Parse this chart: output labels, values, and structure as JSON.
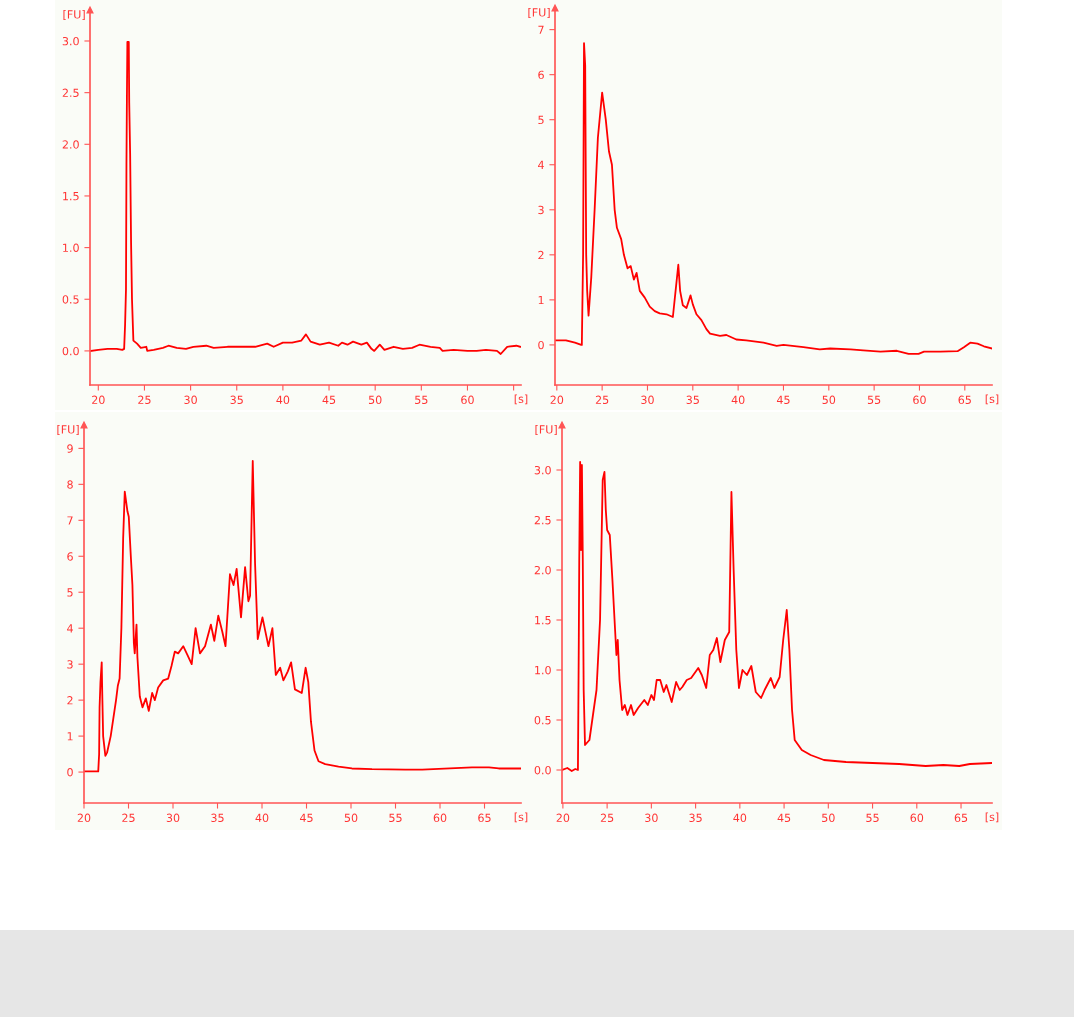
{
  "chart_data": [
    {
      "type": "line",
      "xlabel": "[s]",
      "ylabel": "[FU]",
      "xlim": [
        19.1,
        65.8
      ],
      "ylim": [
        -0.33,
        3.3
      ],
      "xticks": [
        20,
        25,
        30,
        35,
        40,
        45,
        50,
        55,
        60,
        {
          "value": 65,
          "label": null
        }
      ],
      "yticks": [
        {
          "value": 0,
          "label": "0.0"
        },
        0.5,
        {
          "value": 1,
          "label": "1.0"
        },
        1.5,
        {
          "value": 2,
          "label": "2.0"
        },
        2.5,
        {
          "value": 3,
          "label": "3.0"
        }
      ],
      "series": [
        {
          "color": "#ff0000",
          "x": [
            19.2,
            20,
            21,
            22,
            22.6,
            22.8,
            22.9,
            23.0,
            23.05,
            23.1,
            23.15,
            23.3,
            23.35,
            23.45,
            23.55,
            23.65,
            23.8,
            24.2,
            24.6,
            25.2,
            25.3,
            26,
            27,
            27.6,
            28.5,
            29.5,
            30.3,
            31.7,
            32.5,
            34,
            35.5,
            37,
            38.3,
            39,
            40,
            41,
            42,
            42.5,
            43,
            44,
            45,
            46,
            46.4,
            47,
            47.6,
            48.5,
            49.1,
            49.6,
            49.9,
            50.5,
            51,
            52,
            53,
            54,
            54.8,
            56,
            57,
            57.3,
            58.5,
            60,
            61,
            62,
            63.2,
            63.6,
            64.3,
            65.3,
            65.7
          ],
          "values": [
            0.0,
            0.01,
            0.02,
            0.02,
            0.01,
            0.02,
            0.25,
            0.6,
            1.8,
            2.45,
            2.99,
            2.99,
            2.4,
            1.9,
            1.05,
            0.5,
            0.1,
            0.07,
            0.03,
            0.04,
            0.0,
            0.01,
            0.03,
            0.05,
            0.03,
            0.02,
            0.04,
            0.05,
            0.03,
            0.04,
            0.04,
            0.04,
            0.07,
            0.04,
            0.08,
            0.08,
            0.1,
            0.16,
            0.09,
            0.06,
            0.08,
            0.05,
            0.08,
            0.06,
            0.09,
            0.06,
            0.08,
            0.02,
            0.0,
            0.06,
            0.01,
            0.04,
            0.02,
            0.03,
            0.06,
            0.04,
            0.03,
            0.0,
            0.01,
            0.0,
            0.0,
            0.01,
            0.0,
            -0.03,
            0.04,
            0.05,
            0.04
          ]
        }
      ]
    },
    {
      "type": "line",
      "xlabel": "[s]",
      "ylabel": "[FU]",
      "xlim": [
        19.8,
        68.0
      ],
      "ylim": [
        -0.89,
        7.48
      ],
      "xticks": [
        20,
        25,
        30,
        35,
        40,
        45,
        50,
        55,
        60,
        65
      ],
      "yticks": [
        0,
        1,
        2,
        3,
        4,
        5,
        6,
        7
      ],
      "series": [
        {
          "color": "#ff0000",
          "x": [
            19.8,
            21,
            22,
            22.7,
            22.76,
            22.9,
            23.0,
            23.13,
            23.24,
            23.35,
            23.5,
            23.8,
            24.17,
            24.53,
            25.0,
            25.4,
            25.75,
            26.08,
            26.38,
            26.63,
            27.1,
            27.4,
            27.8,
            28.15,
            28.5,
            28.8,
            29.15,
            29.7,
            30.25,
            30.8,
            31.35,
            32.1,
            32.8,
            33.1,
            33.4,
            33.6,
            33.9,
            34.3,
            34.75,
            35.0,
            35.4,
            35.95,
            36.5,
            36.9,
            38,
            38.7,
            39.8,
            40.9,
            42.8,
            44.25,
            45,
            47.2,
            49,
            50.15,
            52.4,
            53.8,
            55.7,
            57.5,
            58.8,
            59.9,
            60.5,
            62.3,
            64.2,
            64.9,
            65.6,
            66.4,
            67.1,
            68.0
          ],
          "values": [
            0.1,
            0.1,
            0.05,
            0.0,
            0.0,
            2.0,
            6.7,
            6.2,
            2.0,
            1.2,
            0.65,
            1.5,
            3.0,
            4.6,
            5.6,
            5.0,
            4.3,
            4.0,
            3.0,
            2.6,
            2.35,
            2.0,
            1.7,
            1.75,
            1.45,
            1.6,
            1.2,
            1.05,
            0.85,
            0.75,
            0.7,
            0.68,
            0.62,
            1.2,
            1.78,
            1.2,
            0.88,
            0.82,
            1.1,
            0.9,
            0.68,
            0.55,
            0.35,
            0.25,
            0.2,
            0.22,
            0.12,
            0.1,
            0.05,
            -0.02,
            0.0,
            -0.05,
            -0.1,
            -0.08,
            -0.1,
            -0.12,
            -0.15,
            -0.13,
            -0.2,
            -0.2,
            -0.15,
            -0.15,
            -0.14,
            -0.05,
            0.05,
            0.03,
            -0.03,
            -0.08
          ]
        }
      ]
    },
    {
      "type": "line",
      "xlabel": "[s]",
      "ylabel": "[FU]",
      "xlim": [
        20,
        69.1
      ],
      "ylim": [
        -0.86,
        9.65
      ],
      "xticks": [
        20,
        25,
        30,
        35,
        40,
        45,
        50,
        55,
        60,
        65
      ],
      "yticks": [
        0,
        1,
        2,
        3,
        4,
        5,
        6,
        7,
        8,
        9
      ],
      "series": [
        {
          "color": "#ff0000",
          "x": [
            20,
            21.6,
            21.7,
            21.75,
            21.85,
            21.99,
            22.05,
            22.15,
            22.4,
            22.6,
            23,
            23.3,
            23.6,
            23.8,
            24.0,
            24.2,
            24.4,
            24.58,
            24.88,
            25.03,
            25.26,
            25.44,
            25.6,
            25.7,
            25.9,
            26.0,
            26.27,
            26.57,
            26.95,
            27.28,
            27.66,
            27.96,
            28.33,
            28.9,
            29.46,
            29.83,
            30.2,
            30.58,
            31.15,
            31.63,
            32.1,
            32.54,
            33.03,
            33.6,
            34.26,
            34.64,
            35.09,
            35.54,
            35.9,
            36.4,
            36.8,
            37.15,
            37.64,
            38.1,
            38.47,
            38.66,
            38.96,
            39.22,
            39.52,
            40.05,
            40.72,
            41.17,
            41.55,
            42.04,
            42.4,
            42.9,
            43.27,
            43.7,
            44.47,
            44.9,
            45.2,
            45.5,
            45.9,
            46.35,
            47.1,
            48.6,
            50.1,
            52.36,
            56.1,
            58.0,
            59.86,
            63.6,
            65.5,
            66.6,
            69.1
          ],
          "values": [
            0.02,
            0.02,
            0.5,
            1.8,
            2.5,
            3.05,
            2.2,
            1.0,
            0.45,
            0.55,
            1.0,
            1.5,
            2.0,
            2.4,
            2.6,
            4.0,
            6.5,
            7.8,
            7.25,
            7.1,
            6.0,
            5.2,
            3.6,
            3.3,
            4.1,
            3.2,
            2.1,
            1.8,
            2.05,
            1.7,
            2.2,
            2.0,
            2.35,
            2.55,
            2.6,
            2.95,
            3.35,
            3.3,
            3.5,
            3.25,
            3.0,
            4.0,
            3.3,
            3.5,
            4.1,
            3.65,
            4.35,
            3.9,
            3.5,
            5.5,
            5.2,
            5.65,
            4.3,
            5.7,
            4.75,
            4.9,
            8.65,
            5.8,
            3.7,
            4.3,
            3.5,
            4.0,
            2.7,
            2.9,
            2.55,
            2.8,
            3.05,
            2.3,
            2.2,
            2.9,
            2.5,
            1.4,
            0.6,
            0.3,
            0.22,
            0.15,
            0.1,
            0.08,
            0.07,
            0.07,
            0.09,
            0.13,
            0.13,
            0.1,
            0.1
          ]
        }
      ]
    },
    {
      "type": "line",
      "xlabel": "[s]",
      "ylabel": "[FU]",
      "xlim": [
        19.9,
        68.5
      ],
      "ylim": [
        -0.33,
        3.45
      ],
      "xticks": [
        20,
        25,
        30,
        35,
        40,
        45,
        50,
        55,
        60,
        65
      ],
      "yticks": [
        {
          "value": 0,
          "label": "0.0"
        },
        0.5,
        {
          "value": 1,
          "label": "1.0"
        },
        1.5,
        {
          "value": 2,
          "label": "2.0"
        },
        2.5,
        {
          "value": 3,
          "label": "3.0"
        }
      ],
      "series": [
        {
          "color": "#ff0000",
          "x": [
            19.9,
            20.5,
            21.0,
            21.4,
            21.7,
            21.8,
            21.85,
            21.95,
            22.05,
            22.15,
            22.25,
            22.35,
            22.5,
            23.0,
            23.4,
            23.8,
            24.2,
            24.5,
            24.7,
            24.85,
            25.0,
            25.3,
            25.6,
            25.9,
            26.05,
            26.2,
            26.4,
            26.7,
            27.0,
            27.3,
            27.7,
            28.0,
            28.5,
            29.2,
            29.6,
            30.0,
            30.3,
            30.6,
            31.0,
            31.4,
            31.7,
            32.3,
            32.8,
            33.2,
            33.5,
            34.0,
            34.5,
            35.3,
            35.7,
            36.2,
            36.6,
            37.0,
            37.4,
            37.8,
            38.3,
            38.8,
            39.05,
            39.3,
            39.6,
            39.9,
            40.3,
            40.8,
            41.3,
            41.8,
            42.4,
            42.8,
            43.5,
            43.9,
            44.5,
            44.9,
            45.3,
            45.6,
            45.9,
            46.2,
            47.0,
            48.0,
            49.5,
            52.0,
            55.0,
            58.0,
            61.0,
            63.0,
            64.8,
            66.0,
            68.5
          ],
          "values": [
            0.0,
            0.02,
            -0.01,
            0.01,
            0.0,
            1.3,
            2.1,
            3.08,
            2.2,
            3.05,
            2.1,
            0.8,
            0.25,
            0.3,
            0.55,
            0.8,
            1.5,
            2.9,
            2.98,
            2.6,
            2.4,
            2.35,
            1.9,
            1.4,
            1.15,
            1.3,
            0.9,
            0.6,
            0.65,
            0.55,
            0.65,
            0.55,
            0.62,
            0.7,
            0.65,
            0.75,
            0.7,
            0.9,
            0.9,
            0.78,
            0.85,
            0.68,
            0.88,
            0.8,
            0.83,
            0.9,
            0.92,
            1.02,
            0.95,
            0.82,
            1.15,
            1.2,
            1.32,
            1.08,
            1.3,
            1.38,
            2.78,
            2.0,
            1.2,
            0.82,
            1.0,
            0.95,
            1.04,
            0.78,
            0.72,
            0.8,
            0.92,
            0.82,
            0.93,
            1.3,
            1.6,
            1.2,
            0.6,
            0.3,
            0.2,
            0.15,
            0.1,
            0.08,
            0.07,
            0.06,
            0.04,
            0.05,
            0.04,
            0.06,
            0.07
          ]
        }
      ]
    }
  ]
}
